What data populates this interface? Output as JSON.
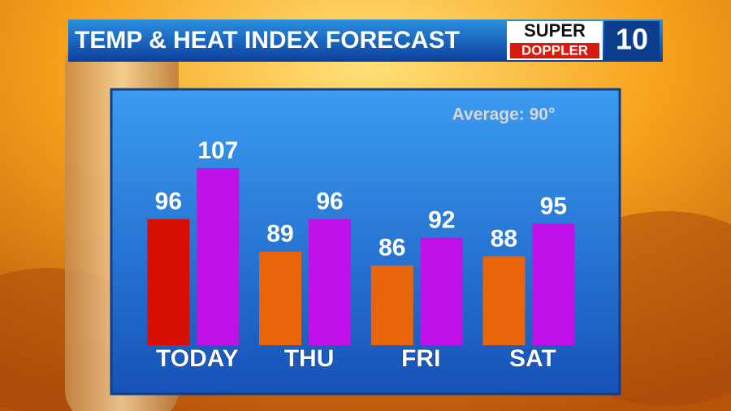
{
  "chart_data": {
    "type": "bar",
    "title": "TEMP & HEAT INDEX FORECAST",
    "annotation": "Average: 90°",
    "categories": [
      "TODAY",
      "THU",
      "FRI",
      "SAT"
    ],
    "series": [
      {
        "colors": [
          "#d80f00",
          "#e8650a",
          "#e8650a",
          "#e8650a"
        ],
        "values": [
          96,
          89,
          86,
          88
        ]
      },
      {
        "colors": [
          "#c012e8",
          "#c012e8",
          "#c012e8",
          "#c012e8"
        ],
        "values": [
          107,
          96,
          92,
          95
        ]
      }
    ]
  },
  "logo": {
    "line1": "SUPER",
    "line2": "DOPPLER",
    "number": "10"
  }
}
